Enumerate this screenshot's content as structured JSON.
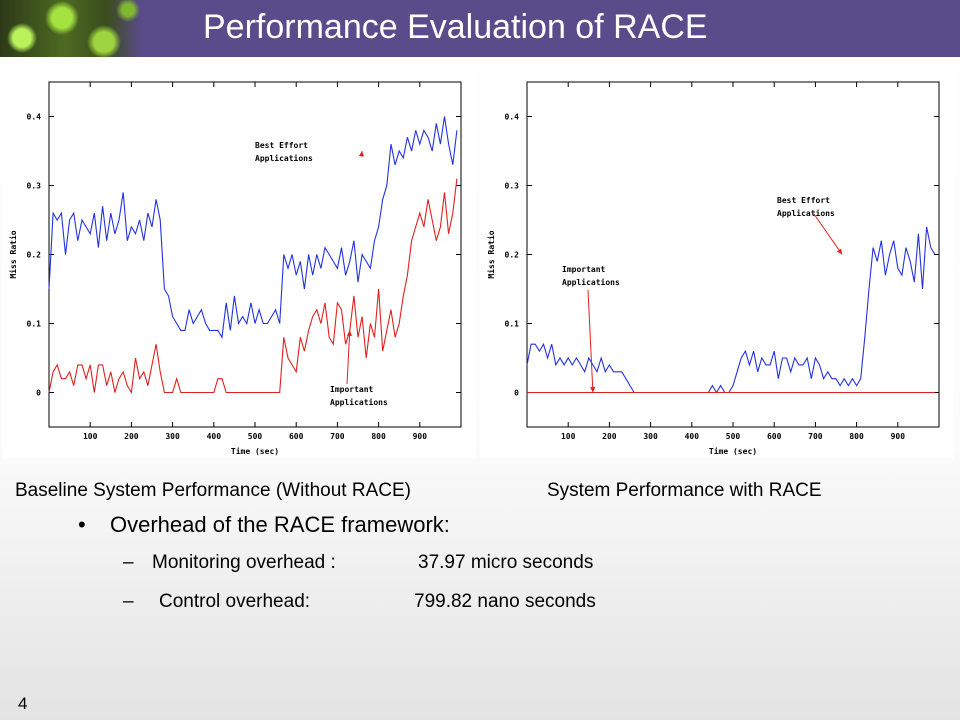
{
  "slide": {
    "title": "Performance Evaluation of RACE",
    "caption_left": "Baseline System Performance (Without RACE)",
    "caption_right": "System Performance with RACE",
    "bullet_marker": "•",
    "bullet": "Overhead of the RACE framework:",
    "sub_items": [
      {
        "dash": "–",
        "label": "Monitoring overhead :",
        "value": "37.97 micro seconds"
      },
      {
        "dash": "–",
        "label": "Control overhead:",
        "value": "799.82 nano seconds"
      }
    ],
    "page_number": "4"
  },
  "chart_data": [
    {
      "type": "line",
      "title": "",
      "xlabel": "Time (sec)",
      "ylabel": "Miss Ratio",
      "xlim": [
        0,
        1000
      ],
      "ylim": [
        -0.05,
        0.45
      ],
      "xticks": [
        "100",
        "200",
        "300",
        "400",
        "500",
        "600",
        "700",
        "800",
        "900"
      ],
      "yticks": [
        "0",
        "0.1",
        "0.2",
        "0.3",
        "0.4"
      ],
      "grid": false,
      "colors": {
        "best_effort": "#2233dd",
        "important": "#e02020"
      },
      "annotations": [
        {
          "lines": [
            "Best Effort",
            "Applications"
          ],
          "target": [
            760,
            0.35
          ]
        },
        {
          "lines": [
            "Important",
            "Applications"
          ],
          "target": [
            730,
            0.09
          ]
        }
      ],
      "x": [
        0,
        10,
        20,
        30,
        40,
        50,
        60,
        70,
        80,
        90,
        100,
        110,
        120,
        130,
        140,
        150,
        160,
        170,
        180,
        190,
        200,
        210,
        220,
        230,
        240,
        250,
        260,
        270,
        280,
        290,
        300,
        310,
        320,
        330,
        340,
        350,
        360,
        370,
        380,
        390,
        400,
        410,
        420,
        430,
        440,
        450,
        460,
        470,
        480,
        490,
        500,
        510,
        520,
        530,
        540,
        550,
        560,
        570,
        580,
        590,
        600,
        610,
        620,
        630,
        640,
        650,
        660,
        670,
        680,
        690,
        700,
        710,
        720,
        730,
        740,
        750,
        760,
        770,
        780,
        790,
        800,
        810,
        820,
        830,
        840,
        850,
        860,
        870,
        880,
        890,
        900,
        910,
        920,
        930,
        940,
        950,
        960,
        970,
        980,
        990
      ],
      "series": [
        {
          "values": [
            0.15,
            0.26,
            0.25,
            0.26,
            0.2,
            0.25,
            0.26,
            0.22,
            0.25,
            0.24,
            0.23,
            0.26,
            0.21,
            0.27,
            0.22,
            0.26,
            0.23,
            0.25,
            0.29,
            0.22,
            0.24,
            0.23,
            0.25,
            0.22,
            0.26,
            0.24,
            0.28,
            0.25,
            0.15,
            0.14,
            0.11,
            0.1,
            0.09,
            0.09,
            0.12,
            0.1,
            0.11,
            0.12,
            0.1,
            0.09,
            0.09,
            0.09,
            0.08,
            0.13,
            0.09,
            0.14,
            0.1,
            0.11,
            0.1,
            0.13,
            0.1,
            0.12,
            0.1,
            0.1,
            0.11,
            0.12,
            0.1,
            0.2,
            0.18,
            0.2,
            0.17,
            0.19,
            0.15,
            0.2,
            0.17,
            0.2,
            0.18,
            0.21,
            0.2,
            0.19,
            0.18,
            0.21,
            0.17,
            0.19,
            0.22,
            0.16,
            0.2,
            0.19,
            0.18,
            0.22,
            0.24,
            0.28,
            0.3,
            0.36,
            0.33,
            0.35,
            0.34,
            0.37,
            0.35,
            0.38,
            0.36,
            0.38,
            0.37,
            0.35,
            0.39,
            0.36,
            0.4,
            0.36,
            0.33,
            0.38
          ]
        },
        {
          "values": [
            0,
            0.03,
            0.04,
            0.02,
            0.02,
            0.03,
            0.01,
            0.04,
            0.04,
            0.02,
            0.04,
            0,
            0.04,
            0.04,
            0.01,
            0.03,
            0,
            0.02,
            0.03,
            0.01,
            0,
            0.05,
            0.02,
            0.03,
            0.01,
            0.04,
            0.07,
            0.03,
            0,
            0,
            0,
            0.02,
            0,
            0,
            0,
            0,
            0,
            0,
            0,
            0,
            0,
            0.02,
            0.02,
            0,
            0,
            0,
            0,
            0,
            0,
            0,
            0,
            0,
            0,
            0,
            0,
            0,
            0,
            0.08,
            0.05,
            0.04,
            0.03,
            0.08,
            0.06,
            0.09,
            0.11,
            0.12,
            0.1,
            0.13,
            0.08,
            0.07,
            0.13,
            0.12,
            0.07,
            0.09,
            0.14,
            0.08,
            0.11,
            0.05,
            0.1,
            0.08,
            0.15,
            0.06,
            0.09,
            0.12,
            0.08,
            0.1,
            0.14,
            0.17,
            0.22,
            0.24,
            0.26,
            0.24,
            0.28,
            0.25,
            0.22,
            0.24,
            0.29,
            0.23,
            0.26,
            0.31
          ]
        }
      ]
    },
    {
      "type": "line",
      "title": "",
      "xlabel": "Time (sec)",
      "ylabel": "Miss Ratio",
      "xlim": [
        0,
        1000
      ],
      "ylim": [
        -0.05,
        0.45
      ],
      "xticks": [
        "100",
        "200",
        "300",
        "400",
        "500",
        "600",
        "700",
        "800",
        "900"
      ],
      "yticks": [
        "0",
        "0.1",
        "0.2",
        "0.3",
        "0.4"
      ],
      "grid": false,
      "colors": {
        "best_effort": "#2233dd",
        "important": "#e02020"
      },
      "annotations": [
        {
          "lines": [
            "Best Effort",
            "Applications"
          ],
          "target": [
            765,
            0.2
          ]
        },
        {
          "lines": [
            "Important",
            "Applications"
          ],
          "target": [
            160,
            0
          ]
        }
      ],
      "x": [
        0,
        10,
        20,
        30,
        40,
        50,
        60,
        70,
        80,
        90,
        100,
        110,
        120,
        130,
        140,
        150,
        160,
        170,
        180,
        190,
        200,
        210,
        220,
        230,
        240,
        250,
        260,
        270,
        280,
        290,
        300,
        310,
        320,
        330,
        340,
        350,
        360,
        370,
        380,
        390,
        400,
        410,
        420,
        430,
        440,
        450,
        460,
        470,
        480,
        490,
        500,
        510,
        520,
        530,
        540,
        550,
        560,
        570,
        580,
        590,
        600,
        610,
        620,
        630,
        640,
        650,
        660,
        670,
        680,
        690,
        700,
        710,
        720,
        730,
        740,
        750,
        760,
        770,
        780,
        790,
        800,
        810,
        820,
        830,
        840,
        850,
        860,
        870,
        880,
        890,
        900,
        910,
        920,
        930,
        940,
        950,
        960,
        970,
        980,
        990
      ],
      "series": [
        {
          "values": [
            0.04,
            0.07,
            0.07,
            0.06,
            0.07,
            0.05,
            0.07,
            0.04,
            0.05,
            0.04,
            0.05,
            0.04,
            0.05,
            0.04,
            0.03,
            0.05,
            0.04,
            0.03,
            0.05,
            0.03,
            0.04,
            0.03,
            0.03,
            0.03,
            0.02,
            0.01,
            0,
            0,
            0,
            0,
            0,
            0,
            0,
            0,
            0,
            0,
            0,
            0,
            0,
            0,
            0,
            0,
            0,
            0,
            0,
            0.01,
            0,
            0.01,
            0,
            0,
            0.01,
            0.03,
            0.05,
            0.06,
            0.04,
            0.06,
            0.03,
            0.05,
            0.04,
            0.04,
            0.06,
            0.02,
            0.05,
            0.05,
            0.03,
            0.05,
            0.04,
            0.04,
            0.05,
            0.02,
            0.05,
            0.04,
            0.02,
            0.03,
            0.02,
            0.02,
            0.01,
            0.02,
            0.01,
            0.02,
            0.01,
            0.02,
            0.08,
            0.15,
            0.21,
            0.19,
            0.22,
            0.17,
            0.2,
            0.22,
            0.18,
            0.17,
            0.21,
            0.19,
            0.16,
            0.23,
            0.15,
            0.24,
            0.21,
            0.2
          ]
        },
        {
          "values": [
            0,
            0,
            0,
            0,
            0,
            0,
            0,
            0,
            0,
            0,
            0,
            0,
            0,
            0,
            0,
            0,
            0,
            0,
            0,
            0,
            0,
            0,
            0,
            0,
            0,
            0,
            0,
            0,
            0,
            0,
            0,
            0,
            0,
            0,
            0,
            0,
            0,
            0,
            0,
            0,
            0,
            0,
            0,
            0,
            0,
            0,
            0,
            0,
            0,
            0,
            0,
            0,
            0,
            0,
            0,
            0,
            0,
            0,
            0,
            0,
            0,
            0,
            0,
            0,
            0,
            0,
            0,
            0,
            0,
            0,
            0,
            0,
            0,
            0,
            0,
            0,
            0,
            0,
            0,
            0,
            0,
            0,
            0,
            0,
            0,
            0,
            0,
            0,
            0,
            0,
            0,
            0,
            0,
            0,
            0,
            0,
            0,
            0,
            0,
            0
          ]
        }
      ]
    }
  ]
}
